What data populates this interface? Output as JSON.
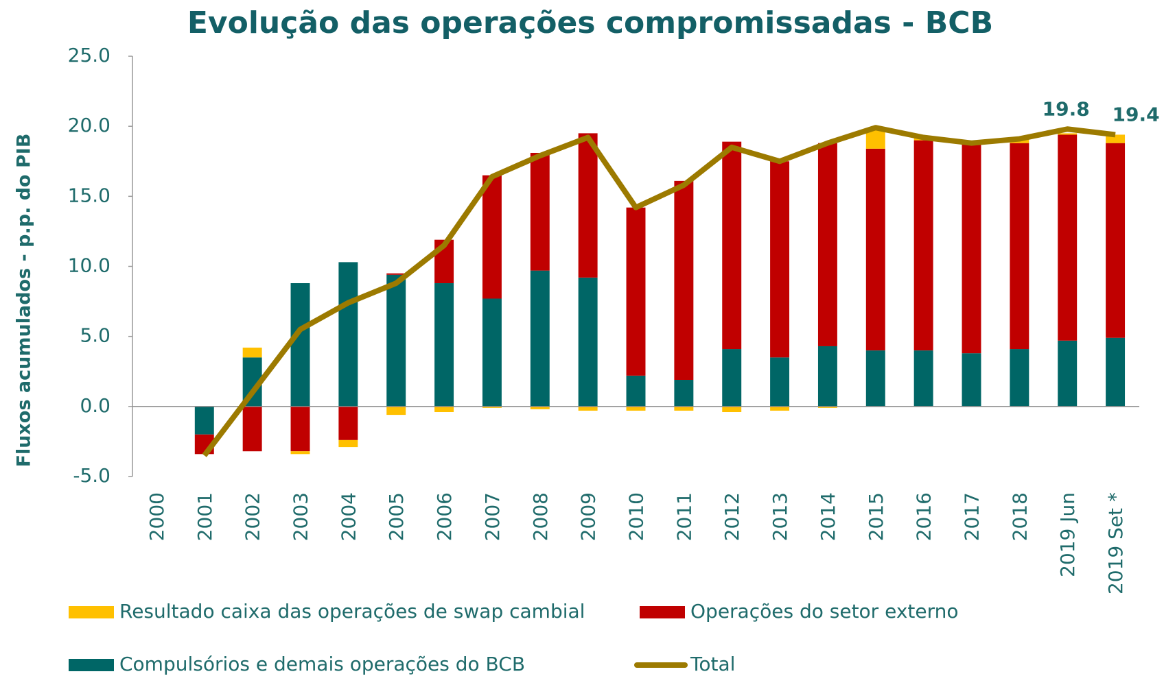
{
  "chart_data": {
    "type": "bar",
    "title": "Evolução das operações compromissadas - BCB",
    "y_label": "Fluxos acumulados - p.p. do PIB",
    "categories": [
      "2000",
      "2001",
      "2002",
      "2003",
      "2004",
      "2005",
      "2006",
      "2007",
      "2008",
      "2009",
      "2010",
      "2011",
      "2012",
      "2013",
      "2014",
      "2015",
      "2016",
      "2017",
      "2018",
      "2019 Jun",
      "2019 Set *"
    ],
    "ylim": [
      -5,
      25
    ],
    "yticks": [
      {
        "value": -5,
        "label": "-5.0"
      },
      {
        "value": 0,
        "label": "0.0"
      },
      {
        "value": 5,
        "label": "5.0"
      },
      {
        "value": 10,
        "label": "10.0"
      },
      {
        "value": 15,
        "label": "15.0"
      },
      {
        "value": 20,
        "label": "20.0"
      },
      {
        "value": 25,
        "label": "25.0"
      }
    ],
    "stacked": true,
    "series": [
      {
        "name": "Resultado caixa das operações de swap cambial",
        "color": "#ffc000",
        "values": [
          0,
          0,
          0.7,
          -0.2,
          -0.5,
          -0.6,
          -0.4,
          -0.1,
          -0.2,
          -0.3,
          -0.3,
          -0.3,
          -0.4,
          -0.3,
          -0.1,
          1.4,
          0.2,
          0.1,
          0.3,
          0.1,
          0.6
        ]
      },
      {
        "name": "Operações do setor externo",
        "color": "#c00000",
        "values": [
          0,
          -1.4,
          -3.2,
          -3.2,
          -2.4,
          0.1,
          3.1,
          8.8,
          8.4,
          10.3,
          12.0,
          14.2,
          14.8,
          14.0,
          14.5,
          14.4,
          15.0,
          14.9,
          14.7,
          14.7,
          13.9
        ]
      },
      {
        "name": "Compulsórios e demais operações do BCB",
        "color": "#006666",
        "values": [
          0,
          -2.0,
          3.5,
          8.8,
          10.3,
          9.4,
          8.8,
          7.7,
          9.7,
          9.2,
          2.2,
          1.9,
          4.1,
          3.5,
          4.3,
          4.0,
          4.0,
          3.8,
          4.1,
          4.7,
          4.9
        ]
      },
      {
        "name": "Total",
        "color": "#9c7a00",
        "type": "line",
        "values": [
          null,
          -3.5,
          1.0,
          5.5,
          7.4,
          8.8,
          11.5,
          16.4,
          17.9,
          19.2,
          14.2,
          15.8,
          18.5,
          17.5,
          18.8,
          19.9,
          19.2,
          18.8,
          19.1,
          19.8,
          19.4
        ],
        "value_labels": [
          null,
          null,
          null,
          null,
          null,
          null,
          null,
          null,
          null,
          null,
          null,
          null,
          null,
          null,
          null,
          null,
          null,
          null,
          null,
          "19.8",
          "19.4"
        ]
      }
    ]
  }
}
